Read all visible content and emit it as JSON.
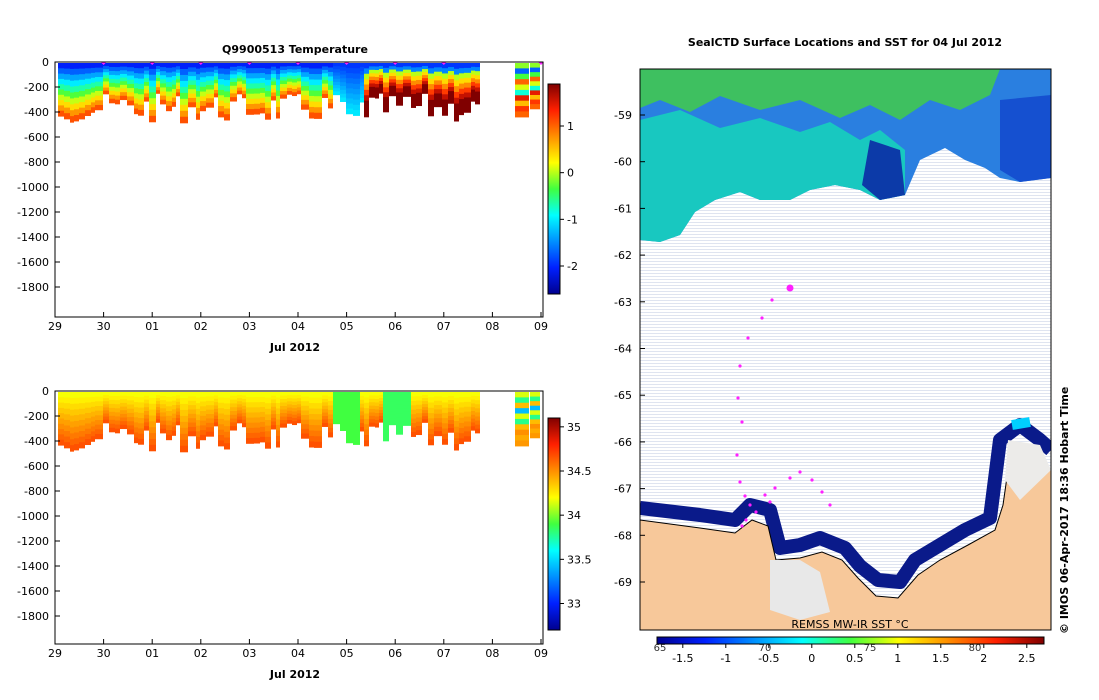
{
  "chart_data": [
    {
      "type": "heatmap",
      "title": "Q9900513  Temperature",
      "xlabel": "Jul 2012",
      "ylabel": "",
      "x_tick_labels": [
        "29",
        "30",
        "01",
        "02",
        "03",
        "04",
        "05",
        "06",
        "07",
        "08",
        "09"
      ],
      "y_tick_values": [
        0,
        -200,
        -400,
        -600,
        -800,
        -1000,
        -1200,
        -1400,
        -1600,
        -1800
      ],
      "ylim": [
        -2000,
        0
      ],
      "colorbar_ticks": [
        1,
        0,
        -1,
        -2
      ],
      "colorbar_range": [
        -2.6,
        1.9
      ],
      "profile_markers": [
        "30",
        "01",
        "02",
        "03",
        "04",
        "05",
        "06",
        "07",
        "09"
      ]
    },
    {
      "type": "heatmap",
      "title": "",
      "xlabel": "Jul 2012",
      "ylabel": "",
      "x_tick_labels": [
        "29",
        "30",
        "01",
        "02",
        "03",
        "04",
        "05",
        "06",
        "07",
        "08",
        "09"
      ],
      "y_tick_values": [
        0,
        -200,
        -400,
        -600,
        -800,
        -1000,
        -1200,
        -1400,
        -1600,
        -1800
      ],
      "ylim": [
        -2000,
        0
      ],
      "colorbar_ticks": [
        35,
        34.5,
        34,
        33.5,
        33
      ],
      "colorbar_range": [
        32.7,
        35.1
      ]
    },
    {
      "type": "heatmap",
      "title": "SealCTD Surface Locations and SST for 04 Jul 2012",
      "y_tick_labels": [
        "-59",
        "-60",
        "-61",
        "-62",
        "-63",
        "-64",
        "-65",
        "-66",
        "-67",
        "-68",
        "-69"
      ],
      "x_tick_labels": [
        "65",
        "70",
        "75",
        "80"
      ],
      "colorbar_ticks": [
        "-1.5",
        "-1",
        "-0.5",
        "0",
        "0.5",
        "1",
        "1.5",
        "2",
        "2.5"
      ],
      "colorbar_range": [
        -1.8,
        2.7
      ],
      "source_label": "REMSS MW-IR SST °C",
      "credit": "© IMOS 06-Apr-2017 18:36 Hobart Time"
    }
  ]
}
